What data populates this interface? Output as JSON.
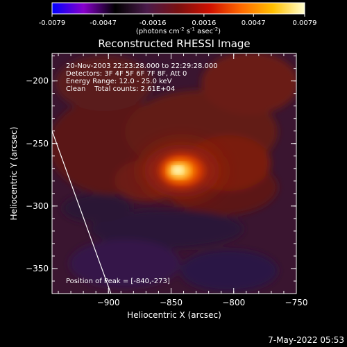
{
  "colorbar": {
    "ticks": [
      "-0.0079",
      "-0.0047",
      "-0.0016",
      "0.0016",
      "0.0047",
      "0.0079"
    ],
    "tick_values": [
      -0.0079,
      -0.0047,
      -0.0016,
      0.0016,
      0.0047,
      0.0079
    ],
    "unit_parts": [
      "(photons cm",
      "-2",
      " s",
      "-1",
      " asec",
      "-2",
      ")"
    ],
    "colors": [
      "#0000ff",
      "#8800cc",
      "#000000",
      "#4a1a4a",
      "#7a1010",
      "#d01000",
      "#ff6a00",
      "#ffc000",
      "#ffffd0"
    ]
  },
  "chart_data": {
    "type": "heatmap",
    "title": "Reconstructed RHESSI Image",
    "xlabel": "Heliocentric X (arcsec)",
    "ylabel": "Heliocentric Y (arcsec)",
    "xlim": [
      -945,
      -750
    ],
    "ylim": [
      -370,
      -178
    ],
    "xticks": [
      -900,
      -850,
      -800,
      -750
    ],
    "xtick_labels": [
      "-900",
      "-850",
      "-800",
      "-750"
    ],
    "yticks": [
      -200,
      -250,
      -300,
      -350
    ],
    "ytick_labels": [
      "-200",
      "-250",
      "-300",
      "-350"
    ],
    "peak": {
      "x": -840,
      "y": -273
    },
    "limb_line": [
      [
        -945,
        -240
      ],
      [
        -898,
        -370
      ]
    ],
    "info_lines": [
      "20-Nov-2003 22:23:28.000 to 22:29:28.000",
      "Detectors: 3F 4F 5F 6F 7F 8F, Att 0",
      "Energy Range: 12.0 - 25.0 keV",
      "Clean    Total counts: 2.61E+04"
    ],
    "peak_label": "Position of Peak = [-840,-273]"
  },
  "footer": {
    "timestamp": "7-May-2022 05:53"
  }
}
